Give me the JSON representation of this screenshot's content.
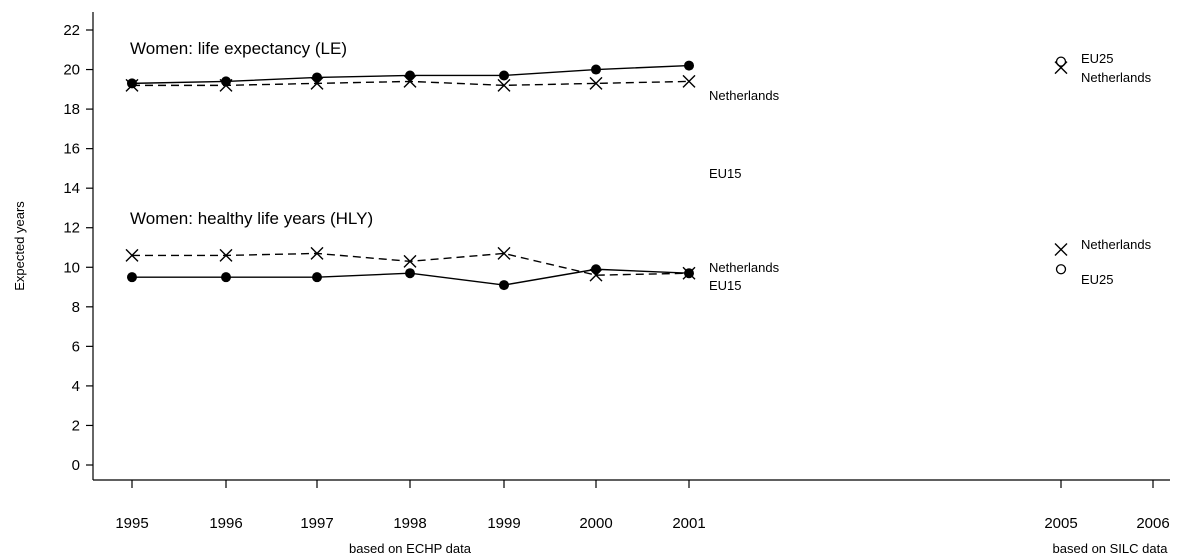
{
  "chart_data": {
    "type": "line",
    "ylabel": "Expected years",
    "ylim": [
      0,
      22
    ],
    "y_ticks": [
      0,
      2,
      4,
      6,
      8,
      10,
      12,
      14,
      16,
      18,
      20,
      22
    ],
    "x_ticks": [
      "1995",
      "1996",
      "1997",
      "1998",
      "1999",
      "2000",
      "2001",
      "2005",
      "2006"
    ],
    "x_sublabels": [
      "based on ECHP data",
      "based on SILC data"
    ],
    "annotations": [
      "Women: life expectancy (LE)",
      "Women: healthy life years (HLY)"
    ],
    "grid": false,
    "legend": "none",
    "series": [
      {
        "name": "EU15",
        "group": "LE",
        "style": "solid",
        "marker": "filled-circle",
        "x": [
          1995,
          1996,
          1997,
          1998,
          1999,
          2000,
          2001
        ],
        "values": [
          19.3,
          19.4,
          19.6,
          19.7,
          19.7,
          20.0,
          20.2
        ]
      },
      {
        "name": "Netherlands",
        "group": "LE",
        "style": "dashed",
        "marker": "x",
        "x": [
          1995,
          1996,
          1997,
          1998,
          1999,
          2000,
          2001
        ],
        "values": [
          19.2,
          19.2,
          19.3,
          19.4,
          19.2,
          19.3,
          19.4
        ]
      },
      {
        "name": "EU15",
        "group": "HLY",
        "style": "solid",
        "marker": "filled-circle",
        "x": [
          1995,
          1996,
          1997,
          1998,
          1999,
          2000,
          2001
        ],
        "values": [
          9.5,
          9.5,
          9.5,
          9.7,
          9.1,
          9.9,
          9.7
        ]
      },
      {
        "name": "Netherlands",
        "group": "HLY",
        "style": "dashed",
        "marker": "x",
        "x": [
          1995,
          1996,
          1997,
          1998,
          1999,
          2000,
          2001
        ],
        "values": [
          10.6,
          10.6,
          10.7,
          10.3,
          10.7,
          9.6,
          9.7
        ]
      },
      {
        "name": "EU25",
        "group": "LE",
        "style": "none",
        "marker": "open-circle",
        "x": [
          2005
        ],
        "values": [
          20.4
        ]
      },
      {
        "name": "Netherlands",
        "group": "LE",
        "style": "none",
        "marker": "x",
        "x": [
          2005
        ],
        "values": [
          20.1
        ]
      },
      {
        "name": "Netherlands",
        "group": "HLY",
        "style": "none",
        "marker": "x",
        "x": [
          2005
        ],
        "values": [
          10.9
        ]
      },
      {
        "name": "EU25",
        "group": "HLY",
        "style": "none",
        "marker": "open-circle",
        "x": [
          2005
        ],
        "values": [
          9.9
        ]
      }
    ],
    "series_labels": [
      "EU15",
      "Netherlands",
      "Netherlands",
      "EU15",
      "EU25",
      "Netherlands",
      "Netherlands",
      "EU25"
    ]
  }
}
